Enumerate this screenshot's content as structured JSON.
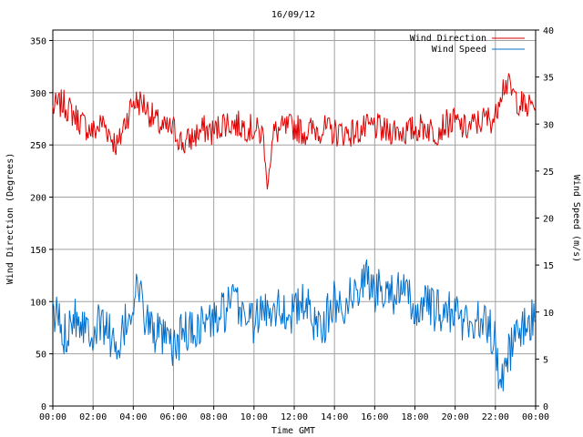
{
  "chart_data": {
    "type": "line",
    "title": "16/09/12",
    "xlabel": "Time GMT",
    "ylabel_left": "Wind Direction (Degrees)",
    "ylabel_right": "Wind Speed (m/s)",
    "x_ticks": [
      "00:00",
      "02:00",
      "04:00",
      "06:00",
      "08:00",
      "10:00",
      "12:00",
      "14:00",
      "16:00",
      "18:00",
      "20:00",
      "22:00",
      "00:00"
    ],
    "ylim_left": [
      0,
      360
    ],
    "yticks_left": [
      "0",
      "50",
      "100",
      "150",
      "200",
      "250",
      "300",
      "350"
    ],
    "ylim_right": [
      0,
      40
    ],
    "yticks_right": [
      "0",
      "5",
      "10",
      "15",
      "20",
      "25",
      "30",
      "35",
      "40"
    ],
    "grid": true,
    "legend_position": "top-right",
    "colors": {
      "direction": "#e00000",
      "speed": "#0070d0"
    },
    "series": [
      {
        "name": "Wind Direction",
        "axis": "left",
        "x_hours": [
          0,
          0.5,
          1,
          1.5,
          2,
          2.5,
          3,
          3.25,
          3.5,
          4,
          4.5,
          5,
          5.5,
          6,
          6.5,
          7,
          7.5,
          8,
          8.5,
          9,
          9.5,
          10,
          10.5,
          10.6,
          11,
          11.5,
          12,
          12.5,
          13,
          13.5,
          14,
          14.5,
          15,
          15.5,
          16,
          16.5,
          17,
          17.5,
          18,
          18.5,
          19,
          19.5,
          20,
          20.5,
          21,
          21.5,
          22,
          22.2,
          22.5,
          23,
          23.5,
          24
        ],
        "values": [
          285,
          290,
          280,
          270,
          262,
          272,
          255,
          248,
          268,
          292,
          290,
          275,
          265,
          265,
          250,
          258,
          265,
          262,
          272,
          270,
          268,
          265,
          258,
          212,
          262,
          265,
          268,
          262,
          265,
          265,
          262,
          262,
          262,
          265,
          268,
          262,
          265,
          262,
          265,
          268,
          262,
          270,
          272,
          265,
          270,
          275,
          275,
          300,
          310,
          295,
          285,
          290
        ]
      },
      {
        "name": "Wind Speed",
        "axis": "right",
        "x_hours": [
          0,
          0.25,
          0.5,
          1,
          1.5,
          2,
          2.5,
          3,
          3.2,
          3.5,
          4,
          4.2,
          4.5,
          5,
          5.5,
          6,
          6.5,
          7,
          7.5,
          8,
          8.5,
          9,
          9.5,
          10,
          10.5,
          11,
          11.5,
          12,
          12.5,
          13,
          13.5,
          14,
          14.5,
          15,
          15.5,
          16,
          16.5,
          17,
          17.5,
          18,
          18.5,
          19,
          19.5,
          20,
          20.5,
          21,
          21.5,
          22,
          22.2,
          22.5,
          23,
          23.5,
          24
        ],
        "values": [
          9,
          10,
          7,
          10,
          9,
          8,
          9,
          7,
          4,
          8,
          11,
          13,
          10,
          8,
          7,
          6,
          8,
          8,
          9,
          9,
          10,
          11,
          10,
          9,
          10,
          11,
          10,
          10,
          11,
          9,
          9,
          11,
          11,
          12,
          14,
          12,
          13,
          12,
          12,
          10,
          11,
          10,
          10,
          10,
          9,
          9,
          9,
          7,
          2,
          5,
          7,
          9,
          9
        ]
      }
    ]
  }
}
